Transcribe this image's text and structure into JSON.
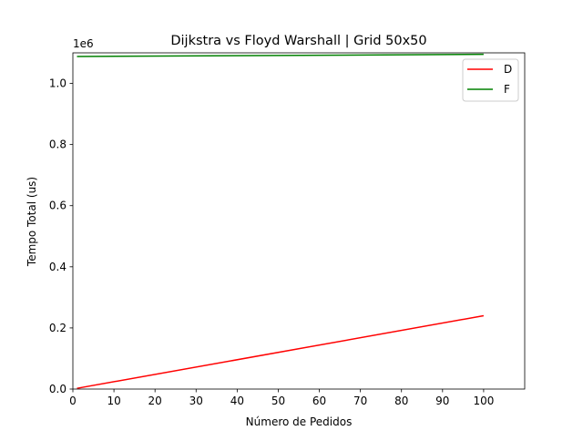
{
  "chart_data": {
    "type": "line",
    "title": "Dijkstra vs Floyd Warshall | Grid 50x50",
    "xlabel": "Número de Pedidos",
    "ylabel": "Tempo Total (us)",
    "y_offset_label": "1e6",
    "xlim": [
      0,
      110
    ],
    "ylim": [
      0,
      1100000
    ],
    "x_ticks": [
      0,
      10,
      20,
      30,
      40,
      50,
      60,
      70,
      80,
      90,
      100
    ],
    "x_tick_labels": [
      "0",
      "10",
      "20",
      "30",
      "40",
      "50",
      "60",
      "70",
      "80",
      "90",
      "100"
    ],
    "y_ticks": [
      0,
      200000,
      400000,
      600000,
      800000,
      1000000
    ],
    "y_tick_labels": [
      "0.0",
      "0.2",
      "0.4",
      "0.6",
      "0.8",
      "1.0"
    ],
    "grid": false,
    "legend_position": "top-right",
    "series": [
      {
        "name": "D",
        "color": "#ff0000",
        "x": [
          1,
          100
        ],
        "y": [
          2400,
          240000
        ]
      },
      {
        "name": "F",
        "color": "#008000",
        "x": [
          1,
          100
        ],
        "y": [
          1088000,
          1095000
        ]
      }
    ]
  }
}
